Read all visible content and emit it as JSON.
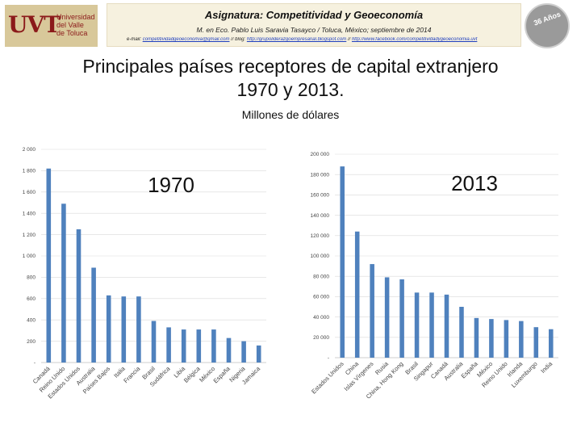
{
  "header": {
    "logo_letters": "UVT",
    "logo_text": [
      "Universidad",
      "del Valle",
      "de Toluca"
    ],
    "course_title": "Asignatura: Competitividad y Geoeconomía",
    "author_line": "M. en Eco. Pablo Luis Saravia Tasayco / Toluca, México; septiembre de 2014",
    "contact_label": "e-mail:",
    "contact_email": "competitividadgeoeconomia@gmail.com",
    "contact_sep1": " // blog:",
    "contact_blog": "http://grupoliderazgoempresarial.blogspot.com",
    "contact_sep2": " // ",
    "contact_fb": "http://www.facebook.com/competitividadygeoeconomia.uvt",
    "seal_text": "36 Años"
  },
  "title_line1": "Principales países receptores de capital extranjero",
  "title_line2": "1970 y 2013.",
  "units": "Millones de dólares",
  "colors": {
    "bar": "#4f81bd",
    "grid": "#d9d9d9",
    "axis": "#bfbfbf"
  },
  "chart_data": [
    {
      "type": "bar",
      "title": "1970",
      "ylim": [
        0,
        2000
      ],
      "y_ticks": [
        0,
        200,
        400,
        600,
        800,
        1000,
        1200,
        1400,
        1600,
        1800,
        2000
      ],
      "y_tick_labels": [
        "-",
        "200",
        "400",
        "600",
        "800",
        "1 000",
        "1 200",
        "1 400",
        "1 600",
        "1 800",
        "2 000"
      ],
      "grid": true,
      "categories": [
        "Canadá",
        "Reino Unido",
        "Estados Unidos",
        "Australia",
        "Países Bajos",
        "Italia",
        "Francia",
        "Brasil",
        "Sudáfrica",
        "Libia",
        "Bélgica",
        "México",
        "España",
        "Nigeria",
        "Jamaica"
      ],
      "values": [
        1820,
        1490,
        1250,
        890,
        630,
        620,
        620,
        390,
        330,
        310,
        310,
        310,
        230,
        200,
        160
      ]
    },
    {
      "type": "bar",
      "title": "2013",
      "ylim": [
        0,
        200000
      ],
      "y_ticks": [
        0,
        20000,
        40000,
        60000,
        80000,
        100000,
        120000,
        140000,
        160000,
        180000,
        200000
      ],
      "y_tick_labels": [
        "-",
        "20 000",
        "40 000",
        "60 000",
        "80 000",
        "100 000",
        "120 000",
        "140 000",
        "160 000",
        "180 000",
        "200 000"
      ],
      "grid": true,
      "categories": [
        "Estados Unidos",
        "China",
        "Islas Vírgenes",
        "Rusia",
        "China, Hong Kong",
        "Brasil",
        "Singapur",
        "Canadá",
        "Australia",
        "España",
        "México",
        "Reino Unido",
        "Irlanda",
        "Luxemburgo",
        "India"
      ],
      "values": [
        188000,
        124000,
        92000,
        79000,
        77000,
        64000,
        64000,
        62000,
        50000,
        39000,
        38000,
        37000,
        36000,
        30000,
        28000
      ]
    }
  ]
}
